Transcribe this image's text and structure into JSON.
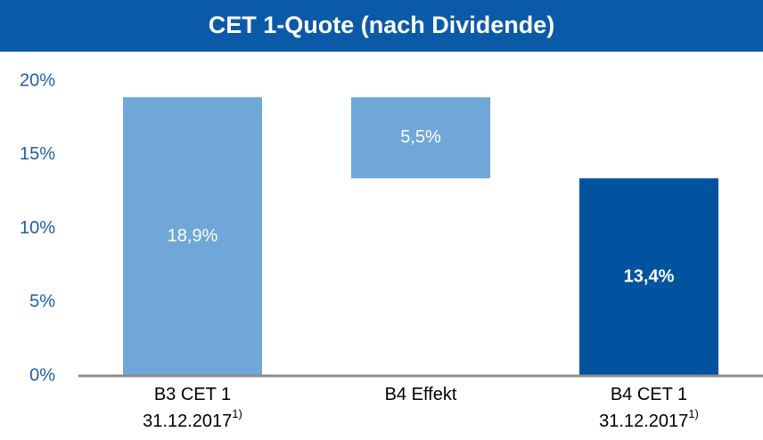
{
  "chart_data": {
    "type": "waterfall",
    "title": "CET 1-Quote (nach Dividende)",
    "categories": [
      [
        "B3 CET 1",
        "31.12.2017"
      ],
      [
        "B4 Effekt"
      ],
      [
        "B4 CET 1",
        "31.12.2017"
      ]
    ],
    "category_notes": [
      "1)",
      null,
      "1)"
    ],
    "values": [
      18.9,
      5.5,
      13.4
    ],
    "value_labels": [
      "18,9%",
      "5,5%",
      "13,4%"
    ],
    "kinds": [
      "total",
      "decrease",
      "total"
    ],
    "colors": [
      "#6fa7d9",
      "#6fa7d9",
      "#00539f"
    ],
    "value_label_bold": [
      false,
      false,
      true
    ],
    "ylim": [
      0,
      20
    ],
    "yticks": [
      {
        "value": 0,
        "label": "0%"
      },
      {
        "value": 5,
        "label": "5%"
      },
      {
        "value": 10,
        "label": "10%"
      },
      {
        "value": 15,
        "label": "15%"
      },
      {
        "value": 20,
        "label": "20%"
      }
    ],
    "grid": false
  }
}
